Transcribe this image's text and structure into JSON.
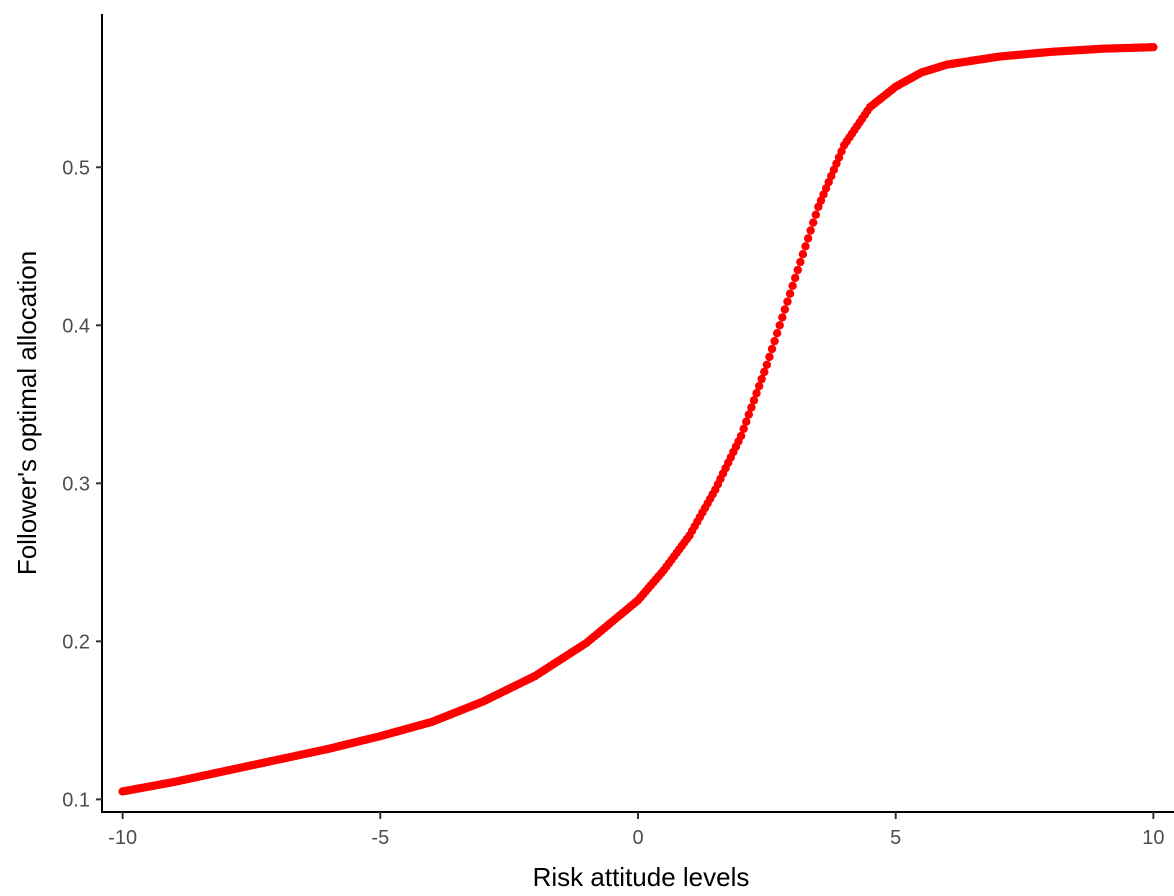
{
  "chart_data": {
    "type": "scatter",
    "title": "",
    "xlabel": "Risk attitude levels",
    "ylabel": "Follower's optimal allocation",
    "xlim": [
      -10.4,
      10.4
    ],
    "ylim": [
      0.092,
      0.597
    ],
    "x_ticks": [
      -10,
      -5,
      0,
      5,
      10
    ],
    "x_tick_labels": [
      "-10",
      "-5",
      "0",
      "5",
      "10"
    ],
    "y_ticks": [
      0.1,
      0.2,
      0.3,
      0.4,
      0.5
    ],
    "y_tick_labels": [
      "0.1",
      "0.2",
      "0.3",
      "0.4",
      "0.5"
    ],
    "grid": false,
    "marker_color": "#ff0000",
    "series": [
      {
        "x": [
          -10,
          -9,
          -8,
          -7,
          -6,
          -5,
          -4,
          -3,
          -2,
          -1,
          0,
          0.5,
          1,
          1.5,
          2,
          2.5,
          3,
          3.5,
          4,
          4.5,
          5,
          5.5,
          6,
          7,
          8,
          9,
          10
        ],
        "y": [
          0.105,
          0.111,
          0.118,
          0.125,
          0.132,
          0.14,
          0.149,
          0.162,
          0.178,
          0.199,
          0.226,
          0.245,
          0.267,
          0.296,
          0.33,
          0.375,
          0.425,
          0.475,
          0.514,
          0.538,
          0.551,
          0.56,
          0.565,
          0.57,
          0.573,
          0.575,
          0.576
        ]
      }
    ]
  }
}
